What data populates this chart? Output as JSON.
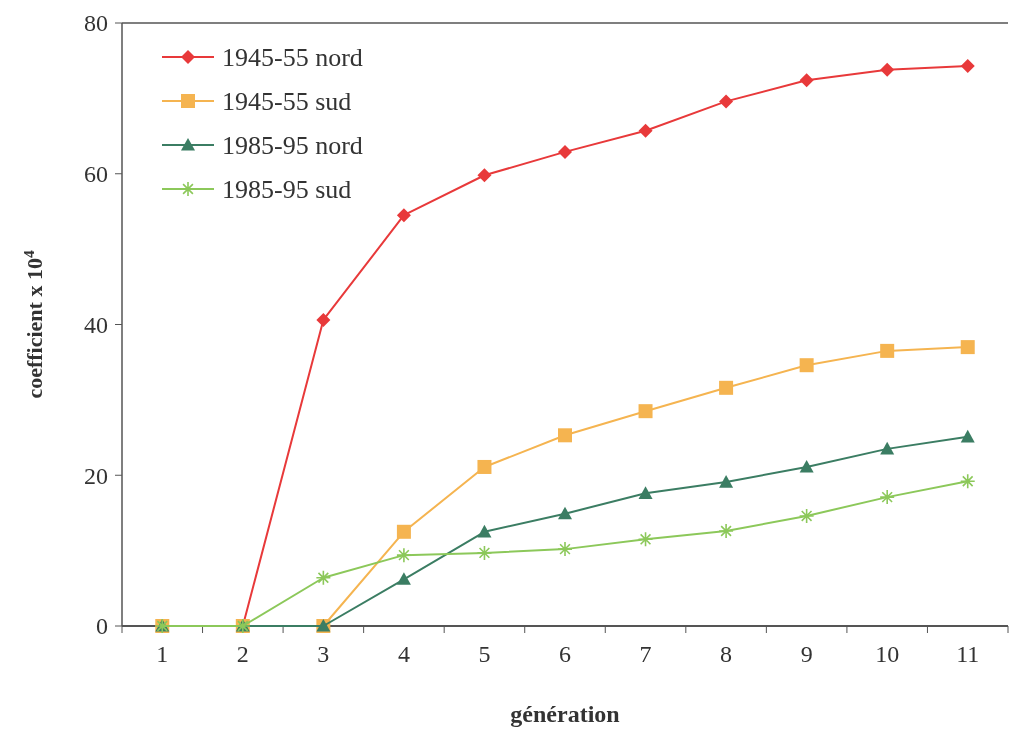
{
  "chart_data": {
    "type": "line",
    "xlabel": "génération",
    "ylabel": "coefficient x 10$^{4}$",
    "categories": [
      "1",
      "2",
      "3",
      "4",
      "5",
      "6",
      "7",
      "8",
      "9",
      "10",
      "11"
    ],
    "ylim": [
      0,
      80
    ],
    "yticks": [
      0,
      20,
      40,
      60,
      80
    ],
    "grid": false,
    "legend": "top left",
    "series": [
      {
        "name": "1945-55 nord",
        "color": "#e8393a",
        "marker": "diamond",
        "values": [
          0,
          0,
          40.6,
          54.5,
          59.8,
          62.9,
          65.7,
          69.6,
          72.4,
          73.8,
          74.3
        ]
      },
      {
        "name": "1945-55 sud",
        "color": "#f5b450",
        "marker": "square",
        "values": [
          0,
          0,
          0,
          12.5,
          21.1,
          25.3,
          28.5,
          31.6,
          34.6,
          36.5,
          37.0
        ]
      },
      {
        "name": "1985-95 nord",
        "color": "#3b7d63",
        "marker": "triangle",
        "values": [
          0,
          0,
          0,
          6.2,
          12.5,
          14.9,
          17.6,
          19.1,
          21.1,
          23.5,
          25.1
        ]
      },
      {
        "name": "1985-95 sud",
        "color": "#8cc85a",
        "marker": "cross",
        "values": [
          0,
          0,
          6.4,
          9.4,
          9.7,
          10.2,
          11.5,
          12.6,
          14.6,
          17.1,
          19.2
        ]
      }
    ]
  }
}
